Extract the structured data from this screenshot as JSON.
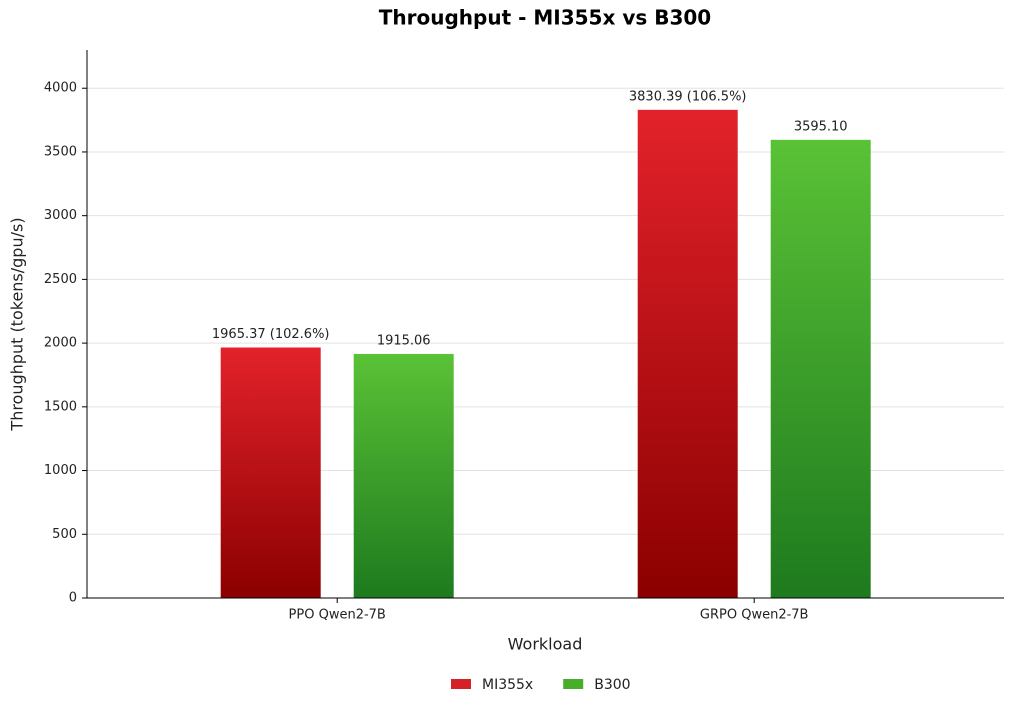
{
  "chart_data": {
    "type": "bar",
    "title": "Throughput - MI355x vs B300",
    "x_label": "Workload",
    "y_label": "Throughput (tokens/gpu/s)",
    "categories": [
      "PPO Qwen2-7B",
      "GRPO Qwen2-7B"
    ],
    "series": [
      {
        "name": "MI355x",
        "color": "#d42027",
        "gradient": [
          "#e3222b",
          "#8b0000"
        ],
        "values": [
          1965.37,
          3830.39
        ],
        "value_labels": [
          "1965.37 (102.6%)",
          "3830.39 (106.5%)"
        ]
      },
      {
        "name": "B300",
        "color": "#4aad2a",
        "gradient": [
          "#5ac236",
          "#1e7a1e"
        ],
        "values": [
          1915.06,
          3595.1
        ],
        "value_labels": [
          "1915.06",
          "3595.10"
        ]
      }
    ],
    "ylim": [
      0,
      4300
    ],
    "yticks": [
      0,
      500,
      1000,
      1500,
      2000,
      2500,
      3000,
      3500,
      4000
    ],
    "grid": true,
    "legend": "bottom"
  }
}
